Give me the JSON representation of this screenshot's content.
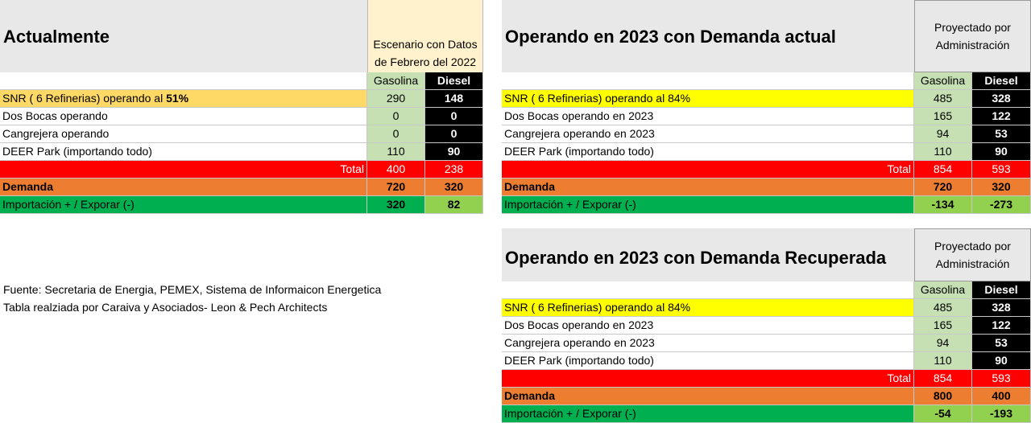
{
  "left": {
    "title": "Actualmente",
    "scenario_header": "Escenario con Datos de Febrero del 2022",
    "col_gas": "Gasolina",
    "col_diesel": "Diesel",
    "rows": [
      {
        "label": "SNR ( 6 Refinerias) operando al ",
        "label_bold": "51%",
        "gas": "290",
        "diesel": "148"
      },
      {
        "label": "Dos Bocas operando",
        "gas": "0",
        "diesel": "0"
      },
      {
        "label": "Cangrejera operando",
        "gas": "0",
        "diesel": "0"
      },
      {
        "label": "DEER Park (importando todo)",
        "gas": "110",
        "diesel": "90"
      }
    ],
    "total": {
      "label": "Total",
      "gas": "400",
      "diesel": "238"
    },
    "demanda": {
      "label": "Demanda",
      "gas": "720",
      "diesel": "320"
    },
    "importacion": {
      "label": "Importación + / Exporar (-)",
      "gas": "320",
      "diesel": "82"
    }
  },
  "right_top": {
    "title": "Operando en 2023 con Demanda actual",
    "proj_header": "Proyectado por Administración",
    "col_gas": "Gasolina",
    "col_diesel": "Diesel",
    "rows": [
      {
        "label": "SNR ( 6 Refinerias) operando al 84%",
        "gas": "485",
        "diesel": "328"
      },
      {
        "label": "Dos Bocas operando en 2023",
        "gas": "165",
        "diesel": "122"
      },
      {
        "label": "Cangrejera operando en 2023",
        "gas": "94",
        "diesel": "53"
      },
      {
        "label": "DEER Park (importando todo)",
        "gas": "110",
        "diesel": "90"
      }
    ],
    "total": {
      "label": "Total",
      "gas": "854",
      "diesel": "593"
    },
    "demanda": {
      "label": "Demanda",
      "gas": "720",
      "diesel": "320"
    },
    "importacion": {
      "label": "Importación + / Exporar (-)",
      "gas": "-134",
      "diesel": "-273"
    }
  },
  "right_bottom": {
    "title": "Operando en 2023 con Demanda Recuperada",
    "proj_header": "Proyectado por Administración",
    "col_gas": "Gasolina",
    "col_diesel": "Diesel",
    "rows": [
      {
        "label": "SNR ( 6 Refinerias) operando al 84%",
        "gas": "485",
        "diesel": "328"
      },
      {
        "label": "Dos Bocas operando en 2023",
        "gas": "165",
        "diesel": "122"
      },
      {
        "label": "Cangrejera operando en 2023",
        "gas": "94",
        "diesel": "53"
      },
      {
        "label": "DEER Park (importando todo)",
        "gas": "110",
        "diesel": "90"
      }
    ],
    "total": {
      "label": "Total",
      "gas": "854",
      "diesel": "593"
    },
    "demanda": {
      "label": "Demanda",
      "gas": "800",
      "diesel": "400"
    },
    "importacion": {
      "label": "Importación + / Exporar (-)",
      "gas": "-54",
      "diesel": "-193"
    }
  },
  "footer": {
    "line1": "Fuente: Secretaria de Energia, PEMEX, Sistema de Informaicon Energetica",
    "line2": "Tabla realziada por Caraiva y Asociados- Leon & Pech Architects"
  },
  "colors": {
    "gasolina_bg": "#c6e0b4",
    "diesel_bg": "#000000",
    "total_bg": "#ff0000",
    "demanda_bg": "#ed7d31",
    "importacion_bg": "#00b050",
    "importacion_left_diesel_bg": "#92d050",
    "snr_left_bg": "#ffd966",
    "snr_right_bg": "#ffff00",
    "scenario_header_bg": "#fff2cc",
    "header_gray_bg": "#e8e8e8"
  }
}
